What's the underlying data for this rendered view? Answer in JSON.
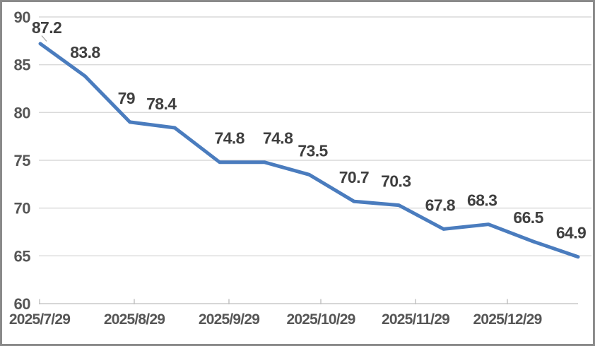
{
  "chart_data": {
    "type": "line",
    "title": "",
    "xlabel": "",
    "ylabel": "",
    "x_axis_tick_labels": [
      "2025/7/29",
      "2025/8/29",
      "2025/9/29",
      "2025/10/29",
      "2025/11/29",
      "2025/12/29"
    ],
    "values": [
      87.2,
      83.8,
      79,
      78.4,
      74.8,
      74.8,
      73.5,
      70.7,
      70.3,
      67.8,
      68.3,
      66.5,
      64.9
    ],
    "data_labels": [
      "87.2",
      "83.8",
      "79",
      "78.4",
      "74.8",
      "74.8",
      "73.5",
      "70.7",
      "70.3",
      "67.8",
      "68.3",
      "66.5",
      "64.9"
    ],
    "y_axis_ticks": [
      60,
      65,
      70,
      75,
      80,
      85,
      90
    ],
    "ylim": [
      60,
      90
    ],
    "grid": true,
    "legend": "none",
    "colors": {
      "line": "#4A7CBE",
      "data_label": "#3F3F3F",
      "axis_label": "#565656",
      "gridline": "#D9D9D9",
      "axis_line": "#C8C8C8",
      "tick_mark": "#BFBFBF",
      "leader_line": "#A6A6A6",
      "frame_border": "#8A8A8A",
      "background": "#FFFFFF"
    }
  }
}
